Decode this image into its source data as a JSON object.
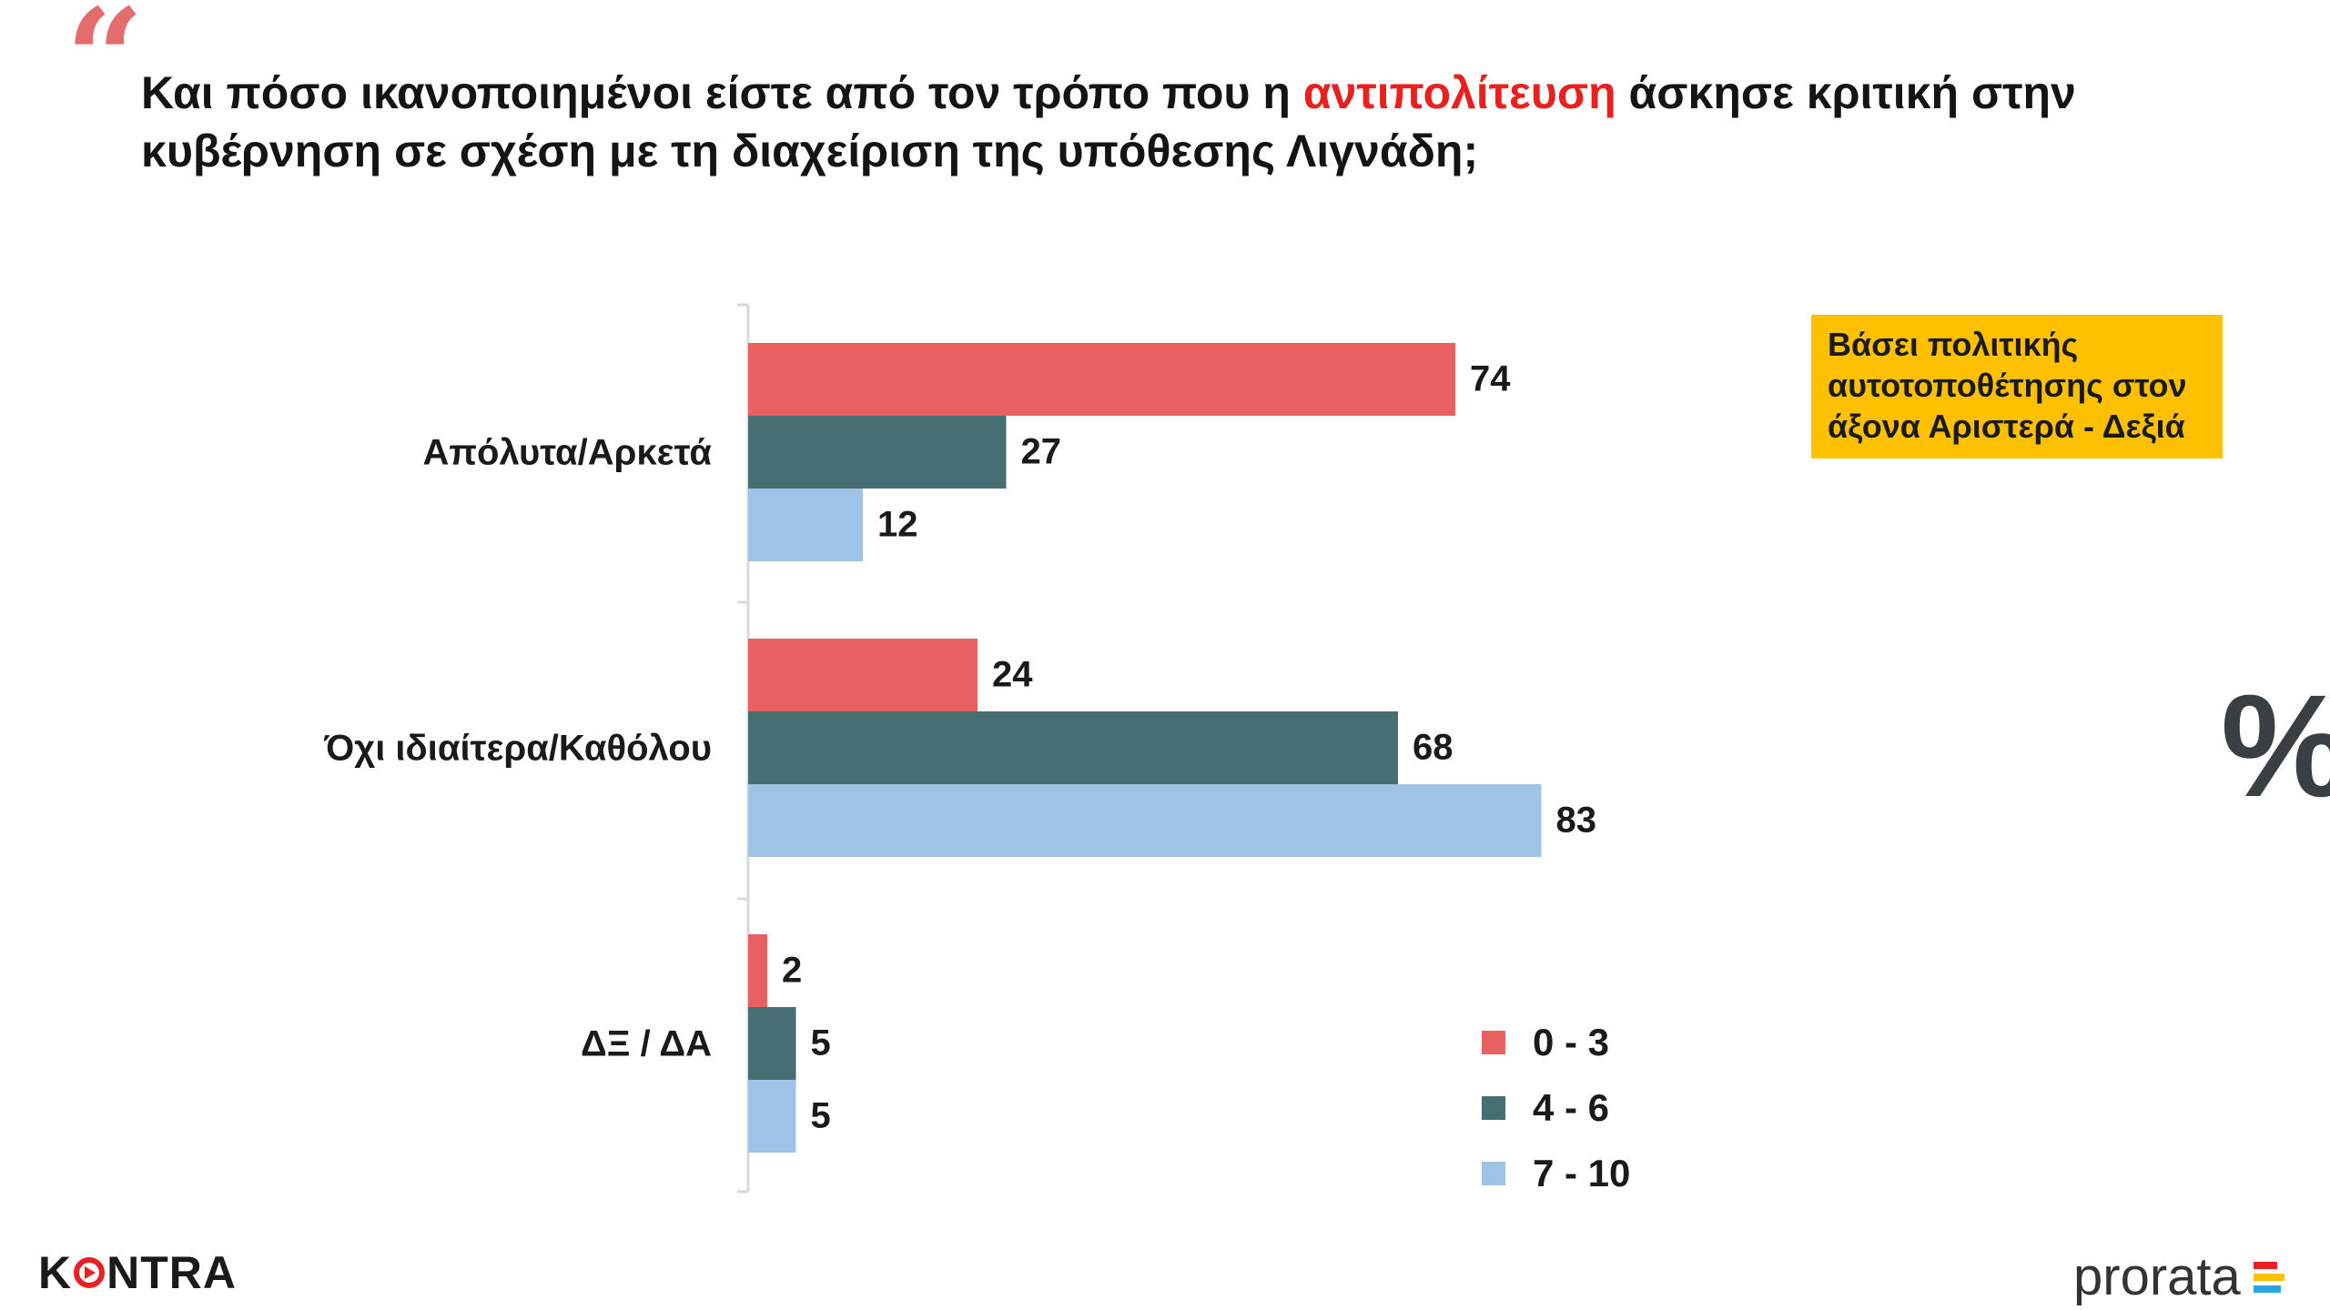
{
  "header": {
    "title_part1": "Και πόσο ικανοποιημένοι είστε από τον τρόπο που η ",
    "title_highlight": "αντιπολίτευση",
    "title_part2": " άσκησε κριτική στην κυβέρνηση σε σχέση με τη διαχείριση της υπόθεσης Λιγνάδη;"
  },
  "note": "Βάσει πολιτικής αυτοτοποθέτησης στον άξονα Αριστερά - Δεξιά",
  "percent_symbol": "%",
  "chart_data": {
    "type": "bar",
    "orientation": "horizontal",
    "categories": [
      "Απόλυτα/Αρκετά",
      "Όχι ιδιαίτερα/Καθόλου",
      "ΔΞ / ΔΑ"
    ],
    "series": [
      {
        "name": "0 - 3",
        "color": "#e86060",
        "values": [
          74,
          24,
          2
        ]
      },
      {
        "name": "4 - 6",
        "color": "#476f73",
        "values": [
          27,
          68,
          5
        ]
      },
      {
        "name": "7 - 10",
        "color": "#9fc3e7",
        "values": [
          12,
          83,
          5
        ]
      }
    ],
    "xlim": [
      0,
      100
    ],
    "grid": false,
    "legend": "bottom-right"
  },
  "legend_colors": {
    "s0": "#e86060",
    "s1": "#476f73",
    "s2": "#9fc3e7"
  },
  "logos": {
    "left": "KONTRA",
    "right": "prorata"
  }
}
